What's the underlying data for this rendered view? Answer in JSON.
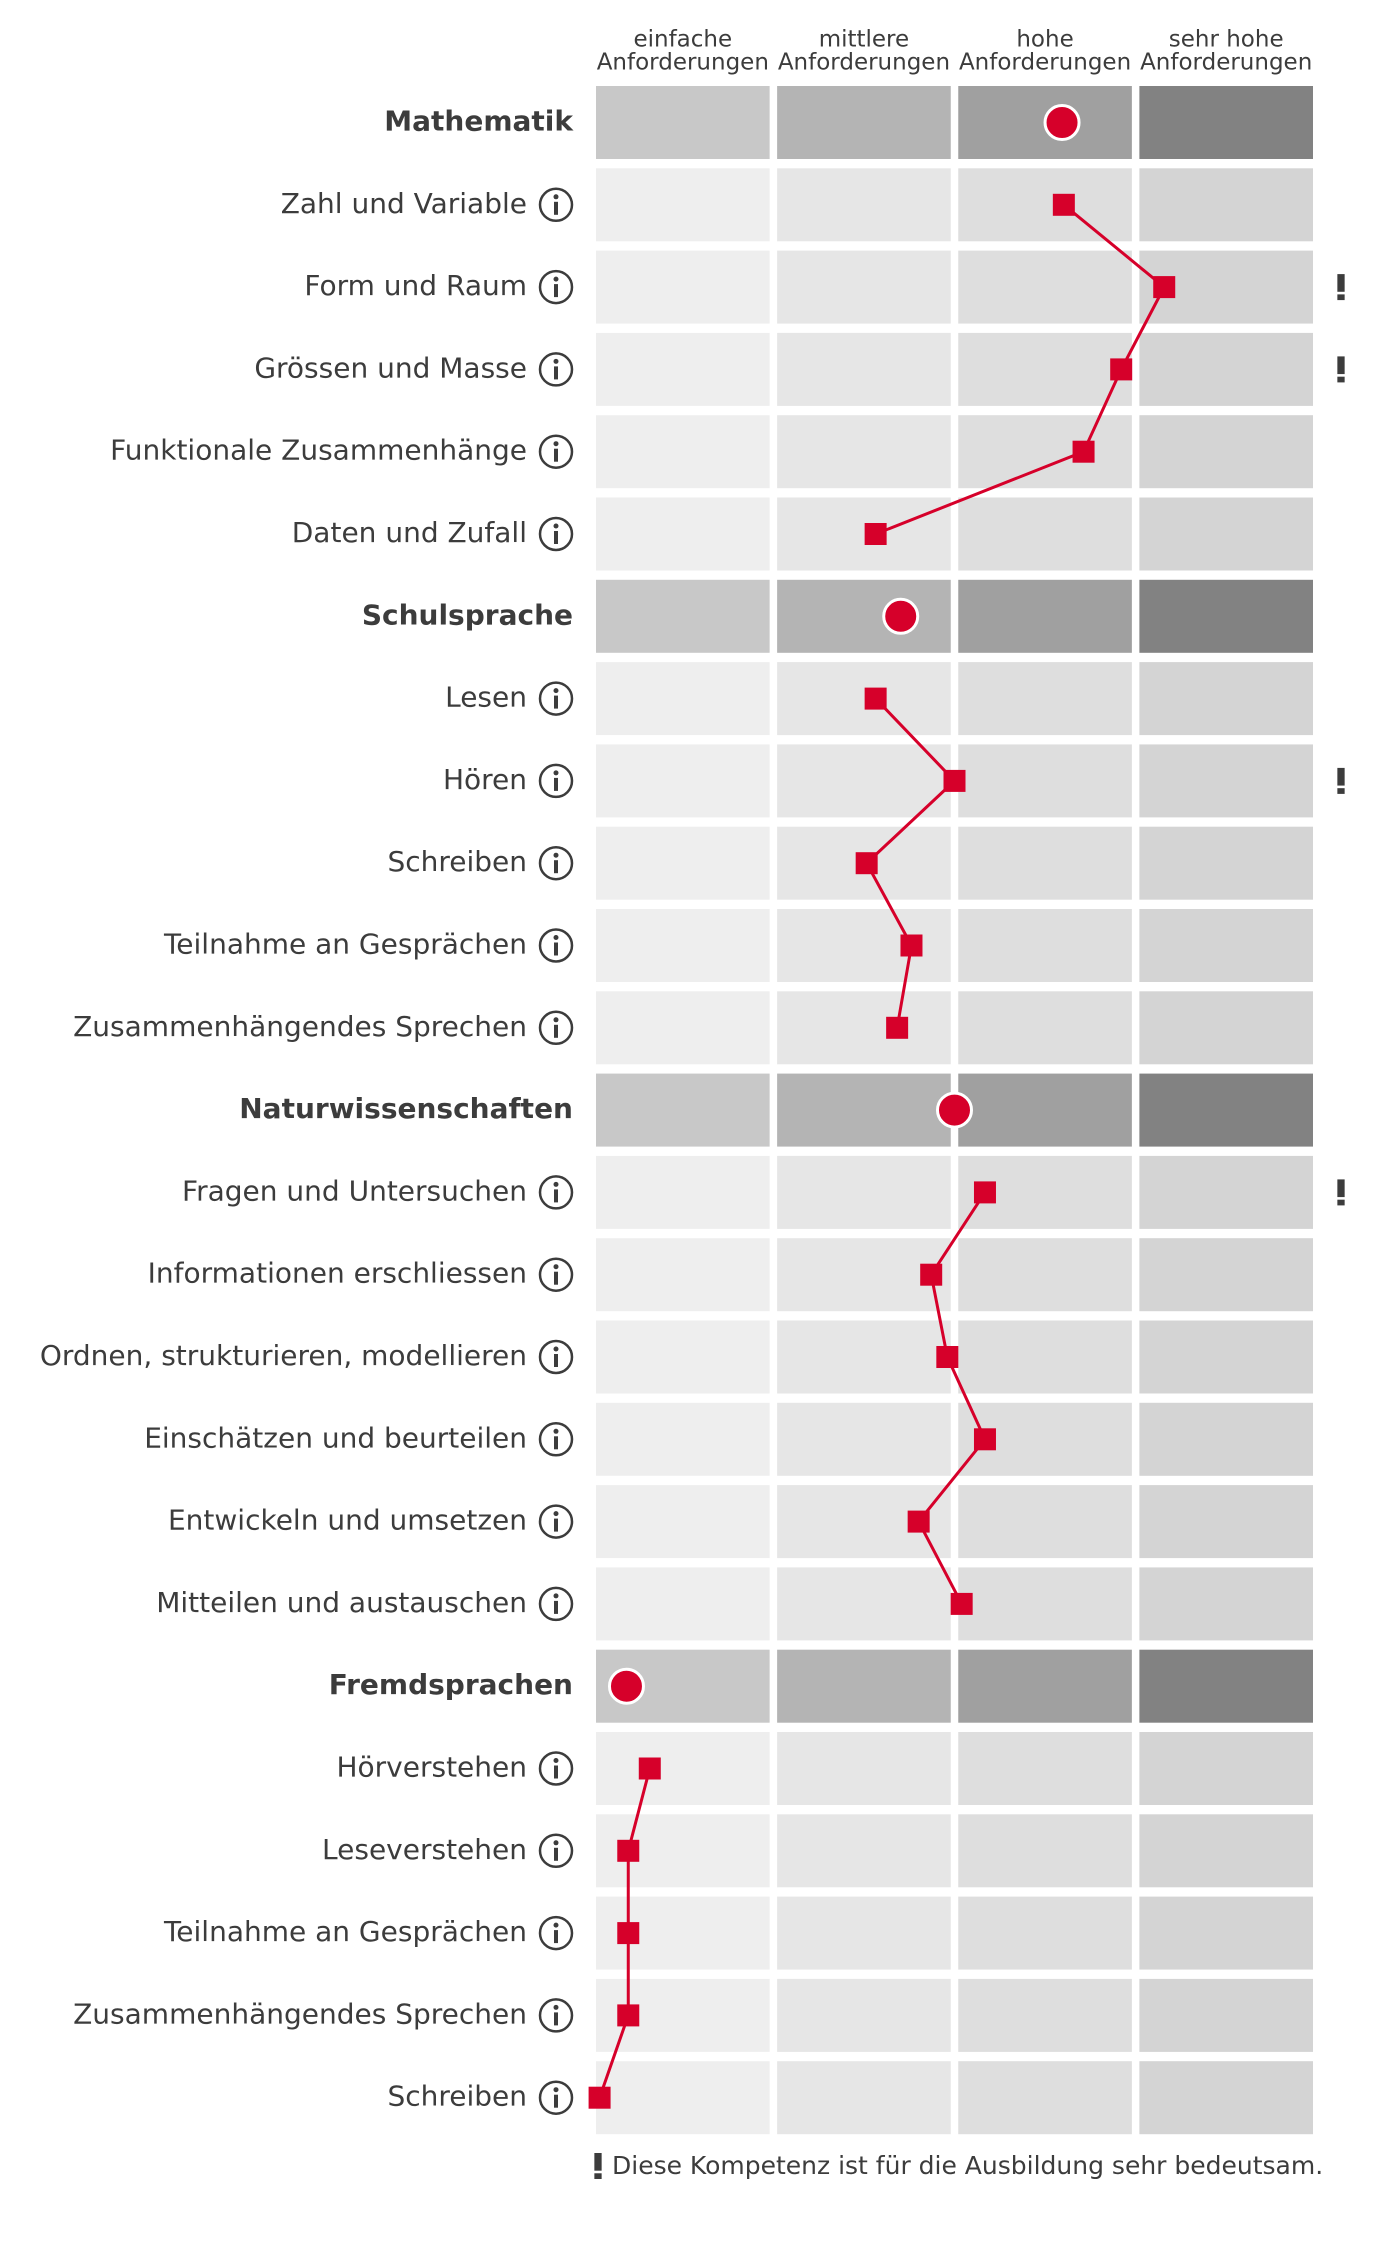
{
  "chart_data": {
    "type": "profile",
    "columns": [
      [
        "einfache",
        "Anforderungen"
      ],
      [
        "mittlere",
        "Anforderungen"
      ],
      [
        "hohe",
        "Anforderungen"
      ],
      [
        "sehr hohe",
        "Anforderungen"
      ]
    ],
    "xlim": [
      0,
      4
    ],
    "color": "#d6002a",
    "groups": [
      {
        "name": "Mathematik",
        "value": 2.6,
        "items": [
          {
            "label": "Zahl und Variable",
            "value": 2.61,
            "important": false
          },
          {
            "label": "Form und Raum",
            "value": 3.17,
            "important": true
          },
          {
            "label": "Grössen und Masse",
            "value": 2.93,
            "important": true
          },
          {
            "label": "Funktionale Zusammenhänge",
            "value": 2.72,
            "important": false
          },
          {
            "label": "Daten und Zufall",
            "value": 1.56,
            "important": false
          }
        ]
      },
      {
        "name": "Schulsprache",
        "value": 1.7,
        "items": [
          {
            "label": "Lesen",
            "value": 1.56,
            "important": false
          },
          {
            "label": "Hören",
            "value": 2.0,
            "important": true
          },
          {
            "label": "Schreiben",
            "value": 1.51,
            "important": false
          },
          {
            "label": "Teilnahme an Gesprächen",
            "value": 1.76,
            "important": false
          },
          {
            "label": "Zusammenhängendes Sprechen",
            "value": 1.68,
            "important": false
          }
        ]
      },
      {
        "name": "Naturwissenschaften",
        "value": 2.0,
        "items": [
          {
            "label": "Fragen und Untersuchen",
            "value": 2.17,
            "important": true
          },
          {
            "label": "Informationen erschliessen",
            "value": 1.87,
            "important": false
          },
          {
            "label": "Ordnen, strukturieren, modellieren",
            "value": 1.96,
            "important": false
          },
          {
            "label": "Einschätzen und beurteilen",
            "value": 2.17,
            "important": false
          },
          {
            "label": "Entwickeln und umsetzen",
            "value": 1.8,
            "important": false
          },
          {
            "label": "Mitteilen und austauschen",
            "value": 2.04,
            "important": false
          }
        ]
      },
      {
        "name": "Fremdsprachen",
        "value": 0.17,
        "items": [
          {
            "label": "Hörverstehen",
            "value": 0.3,
            "important": false
          },
          {
            "label": "Leseverstehen",
            "value": 0.18,
            "important": false
          },
          {
            "label": "Teilnahme an Gesprächen",
            "value": 0.18,
            "important": false
          },
          {
            "label": "Zusammenhängendes Sprechen",
            "value": 0.18,
            "important": false
          },
          {
            "label": "Schreiben",
            "value": 0.02,
            "important": false
          }
        ]
      }
    ],
    "footnote": "Diese Kompetenz ist für die Ausbildung sehr bedeutsam."
  }
}
